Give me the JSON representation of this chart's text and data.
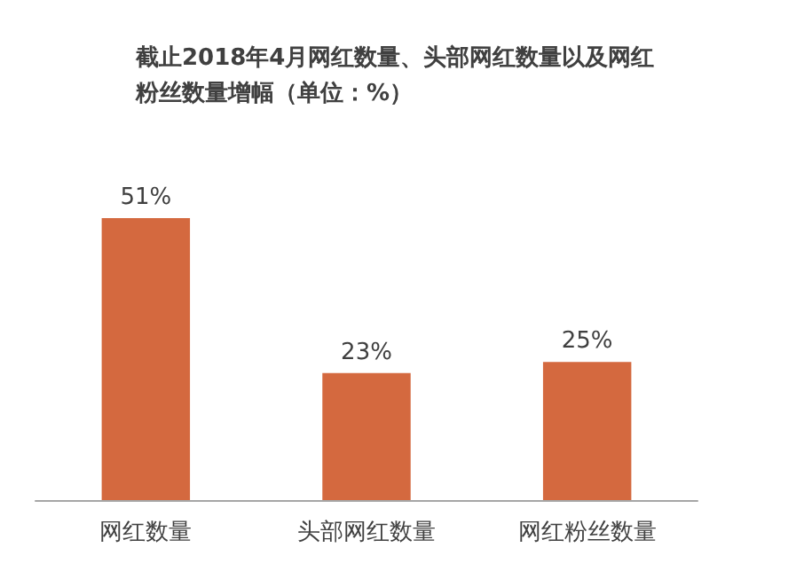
{
  "chart_data": {
    "type": "bar",
    "title": "截止2018年4月网红数量、头部网红数量以及网红粉丝数量增幅（单位：%）",
    "categories": [
      "网红数量",
      "头部网红数量",
      "网红粉丝数量"
    ],
    "values": [
      51,
      23,
      25
    ],
    "value_labels": [
      "51%",
      "23%",
      "25%"
    ],
    "color": "#d4693f"
  }
}
